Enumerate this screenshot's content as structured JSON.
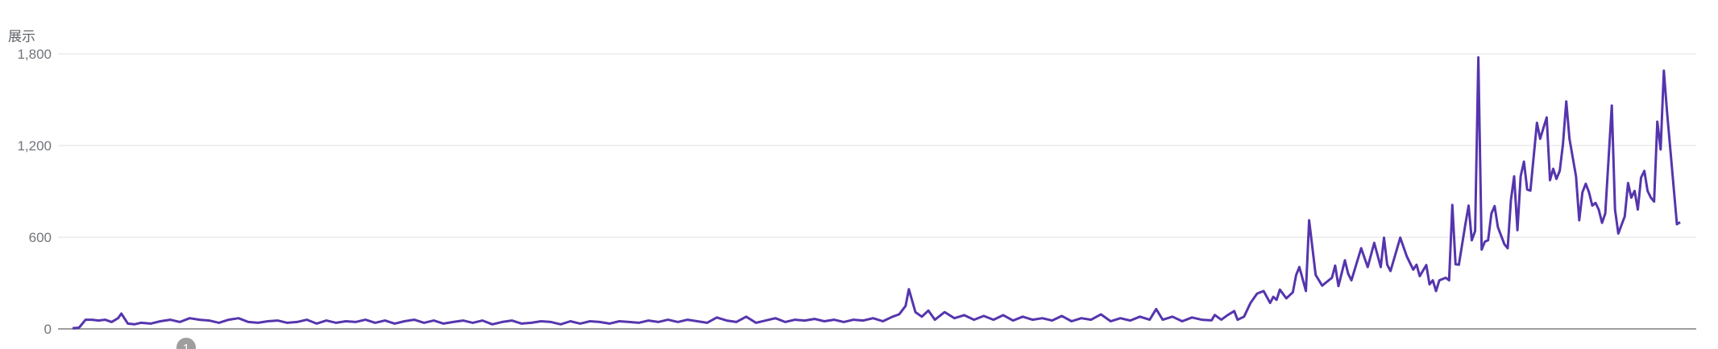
{
  "chart_data": {
    "type": "line",
    "title": "",
    "ylabel": "展示",
    "xlabel": "",
    "ylim": [
      0,
      1800
    ],
    "yticks": [
      0,
      600,
      1200,
      1800
    ],
    "ytick_labels": [
      "0",
      "600",
      "1,200",
      "1,800"
    ],
    "grid": true,
    "legend": "none",
    "annotation_marker": "1",
    "colors": {
      "line": "#5535ad",
      "grid": "#ececec",
      "axis": "#9e9e9e",
      "marker": "#9e9e9e"
    },
    "series": [
      {
        "points": [
          [
            0,
            5
          ],
          [
            2,
            8
          ],
          [
            4,
            60
          ],
          [
            6,
            60
          ],
          [
            8,
            55
          ],
          [
            10,
            60
          ],
          [
            12,
            45
          ],
          [
            14,
            70
          ],
          [
            15,
            100
          ],
          [
            17,
            35
          ],
          [
            19,
            30
          ],
          [
            21,
            40
          ],
          [
            24,
            35
          ],
          [
            27,
            50
          ],
          [
            30,
            60
          ],
          [
            33,
            45
          ],
          [
            36,
            70
          ],
          [
            39,
            60
          ],
          [
            42,
            55
          ],
          [
            45,
            40
          ],
          [
            48,
            60
          ],
          [
            51,
            70
          ],
          [
            54,
            45
          ],
          [
            57,
            40
          ],
          [
            60,
            50
          ],
          [
            63,
            55
          ],
          [
            66,
            40
          ],
          [
            69,
            45
          ],
          [
            72,
            60
          ],
          [
            75,
            35
          ],
          [
            78,
            55
          ],
          [
            81,
            40
          ],
          [
            84,
            50
          ],
          [
            87,
            45
          ],
          [
            90,
            60
          ],
          [
            93,
            40
          ],
          [
            96,
            55
          ],
          [
            99,
            35
          ],
          [
            102,
            50
          ],
          [
            105,
            60
          ],
          [
            108,
            40
          ],
          [
            111,
            55
          ],
          [
            114,
            35
          ],
          [
            117,
            45
          ],
          [
            120,
            55
          ],
          [
            123,
            40
          ],
          [
            126,
            55
          ],
          [
            129,
            30
          ],
          [
            132,
            45
          ],
          [
            135,
            55
          ],
          [
            138,
            35
          ],
          [
            141,
            40
          ],
          [
            144,
            50
          ],
          [
            147,
            45
          ],
          [
            150,
            30
          ],
          [
            153,
            50
          ],
          [
            156,
            35
          ],
          [
            159,
            50
          ],
          [
            162,
            45
          ],
          [
            165,
            35
          ],
          [
            168,
            50
          ],
          [
            171,
            45
          ],
          [
            174,
            40
          ],
          [
            177,
            55
          ],
          [
            180,
            45
          ],
          [
            183,
            60
          ],
          [
            186,
            45
          ],
          [
            189,
            60
          ],
          [
            192,
            50
          ],
          [
            195,
            40
          ],
          [
            198,
            75
          ],
          [
            201,
            55
          ],
          [
            204,
            45
          ],
          [
            207,
            80
          ],
          [
            210,
            40
          ],
          [
            213,
            55
          ],
          [
            216,
            70
          ],
          [
            219,
            45
          ],
          [
            222,
            60
          ],
          [
            225,
            55
          ],
          [
            228,
            65
          ],
          [
            231,
            50
          ],
          [
            234,
            60
          ],
          [
            237,
            45
          ],
          [
            240,
            60
          ],
          [
            243,
            55
          ],
          [
            246,
            70
          ],
          [
            249,
            50
          ],
          [
            252,
            80
          ],
          [
            254,
            95
          ],
          [
            256,
            150
          ],
          [
            257,
            260
          ],
          [
            259,
            110
          ],
          [
            261,
            80
          ],
          [
            263,
            120
          ],
          [
            265,
            60
          ],
          [
            268,
            110
          ],
          [
            271,
            70
          ],
          [
            274,
            90
          ],
          [
            277,
            60
          ],
          [
            280,
            85
          ],
          [
            283,
            60
          ],
          [
            286,
            90
          ],
          [
            289,
            55
          ],
          [
            292,
            80
          ],
          [
            295,
            60
          ],
          [
            298,
            70
          ],
          [
            301,
            55
          ],
          [
            304,
            85
          ],
          [
            307,
            50
          ],
          [
            310,
            70
          ],
          [
            313,
            60
          ],
          [
            316,
            95
          ],
          [
            319,
            50
          ],
          [
            322,
            70
          ],
          [
            325,
            55
          ],
          [
            328,
            80
          ],
          [
            331,
            60
          ],
          [
            333,
            130
          ],
          [
            335,
            60
          ],
          [
            338,
            80
          ],
          [
            341,
            50
          ],
          [
            344,
            75
          ],
          [
            347,
            60
          ],
          [
            350,
            56
          ],
          [
            351,
            91
          ],
          [
            353,
            60
          ],
          [
            355,
            91
          ],
          [
            357,
            117
          ],
          [
            358,
            60
          ],
          [
            360,
            80
          ],
          [
            362,
            170
          ],
          [
            364,
            231
          ],
          [
            366,
            248
          ],
          [
            368,
            170
          ],
          [
            369,
            210
          ],
          [
            370,
            190
          ],
          [
            371,
            257
          ],
          [
            373,
            200
          ],
          [
            374,
            220
          ],
          [
            375,
            240
          ],
          [
            376,
            353
          ],
          [
            377,
            405
          ],
          [
            379,
            248
          ],
          [
            380,
            711
          ],
          [
            382,
            353
          ],
          [
            384,
            283
          ],
          [
            387,
            335
          ],
          [
            388,
            414
          ],
          [
            389,
            280
          ],
          [
            391,
            449
          ],
          [
            392,
            360
          ],
          [
            393,
            318
          ],
          [
            396,
            528
          ],
          [
            398,
            405
          ],
          [
            400,
            563
          ],
          [
            402,
            405
          ],
          [
            403,
            597
          ],
          [
            404,
            420
          ],
          [
            405,
            379
          ],
          [
            408,
            597
          ],
          [
            410,
            475
          ],
          [
            412,
            388
          ],
          [
            413,
            420
          ],
          [
            414,
            345
          ],
          [
            416,
            418
          ],
          [
            417,
            292
          ],
          [
            418,
            318
          ],
          [
            419,
            248
          ],
          [
            420,
            318
          ],
          [
            422,
            335
          ],
          [
            423,
            318
          ],
          [
            424,
            811
          ],
          [
            425,
            423
          ],
          [
            426,
            420
          ],
          [
            428,
            685
          ],
          [
            429,
            807
          ],
          [
            430,
            580
          ],
          [
            431,
            641
          ],
          [
            432,
            1777
          ],
          [
            433,
            519
          ],
          [
            434,
            571
          ],
          [
            435,
            580
          ],
          [
            436,
            755
          ],
          [
            437,
            804
          ],
          [
            438,
            667
          ],
          [
            440,
            554
          ],
          [
            441,
            528
          ],
          [
            442,
            842
          ],
          [
            443,
            999
          ],
          [
            444,
            646
          ],
          [
            445,
            999
          ],
          [
            446,
            1095
          ],
          [
            447,
            912
          ],
          [
            448,
            905
          ],
          [
            450,
            1349
          ],
          [
            451,
            1244
          ],
          [
            453,
            1384
          ],
          [
            454,
            973
          ],
          [
            455,
            1048
          ],
          [
            456,
            982
          ],
          [
            457,
            1034
          ],
          [
            458,
            1209
          ],
          [
            459,
            1489
          ],
          [
            460,
            1244
          ],
          [
            462,
            999
          ],
          [
            463,
            711
          ],
          [
            464,
            894
          ],
          [
            465,
            950
          ],
          [
            466,
            894
          ],
          [
            467,
            807
          ],
          [
            468,
            825
          ],
          [
            469,
            781
          ],
          [
            470,
            694
          ],
          [
            471,
            755
          ],
          [
            473,
            1462
          ],
          [
            474,
            781
          ],
          [
            475,
            624
          ],
          [
            477,
            737
          ],
          [
            478,
            955
          ],
          [
            479,
            859
          ],
          [
            480,
            903
          ],
          [
            481,
            781
          ],
          [
            482,
            990
          ],
          [
            483,
            1034
          ],
          [
            484,
            903
          ],
          [
            485,
            859
          ],
          [
            486,
            833
          ],
          [
            487,
            1357
          ],
          [
            488,
            1174
          ],
          [
            489,
            1690
          ],
          [
            490,
            1418
          ],
          [
            493,
            685
          ],
          [
            494,
            699
          ]
        ]
      }
    ]
  }
}
